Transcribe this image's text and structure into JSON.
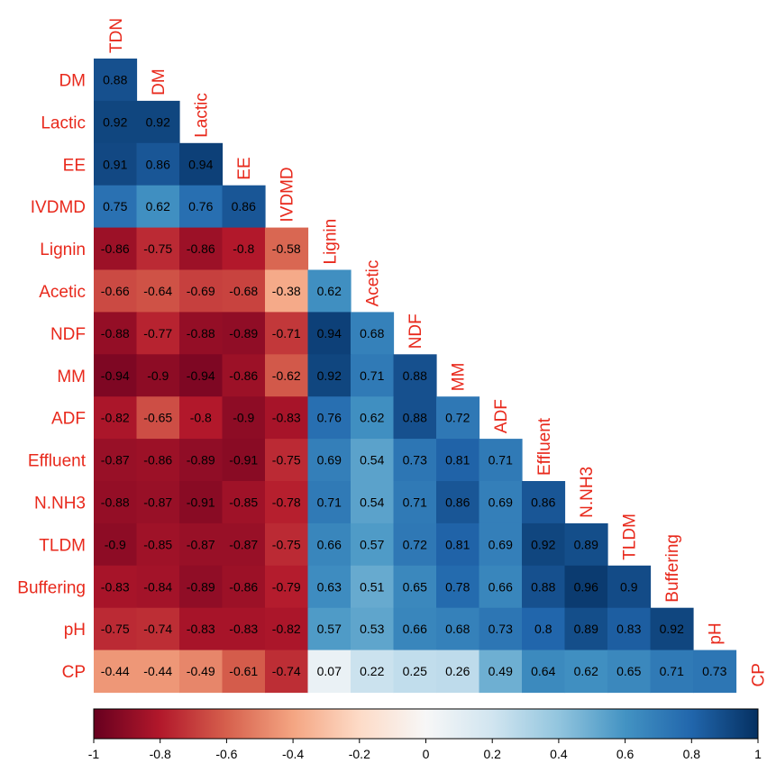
{
  "chart_data": {
    "type": "heatmap",
    "subtype": "lower-triangular correlation matrix",
    "variables": [
      "TDN",
      "DM",
      "Lactic",
      "EE",
      "IVDMD",
      "Lignin",
      "Acetic",
      "NDF",
      "MM",
      "ADF",
      "Effluent",
      "N.NH3",
      "TLDM",
      "Buffering",
      "pH",
      "CP"
    ],
    "matrix": [
      [
        "0.88"
      ],
      [
        "0.92",
        "0.92"
      ],
      [
        "0.91",
        "0.86",
        "0.94"
      ],
      [
        "0.75",
        "0.62",
        "0.76",
        "0.86"
      ],
      [
        "-0.86",
        "-0.75",
        "-0.86",
        "-0.8",
        "-0.58"
      ],
      [
        "-0.66",
        "-0.64",
        "-0.69",
        "-0.68",
        "-0.38",
        "0.62"
      ],
      [
        "-0.88",
        "-0.77",
        "-0.88",
        "-0.89",
        "-0.71",
        "0.94",
        "0.68"
      ],
      [
        "-0.94",
        "-0.9",
        "-0.94",
        "-0.86",
        "-0.62",
        "0.92",
        "0.71",
        "0.88"
      ],
      [
        "-0.82",
        "-0.65",
        "-0.8",
        "-0.9",
        "-0.83",
        "0.76",
        "0.62",
        "0.88",
        "0.72"
      ],
      [
        "-0.87",
        "-0.86",
        "-0.89",
        "-0.91",
        "-0.75",
        "0.69",
        "0.54",
        "0.73",
        "0.81",
        "0.71"
      ],
      [
        "-0.88",
        "-0.87",
        "-0.91",
        "-0.85",
        "-0.78",
        "0.71",
        "0.54",
        "0.71",
        "0.86",
        "0.69",
        "0.86"
      ],
      [
        "-0.9",
        "-0.85",
        "-0.87",
        "-0.87",
        "-0.75",
        "0.66",
        "0.57",
        "0.72",
        "0.81",
        "0.69",
        "0.92",
        "0.89"
      ],
      [
        "-0.83",
        "-0.84",
        "-0.89",
        "-0.86",
        "-0.79",
        "0.63",
        "0.51",
        "0.65",
        "0.78",
        "0.66",
        "0.88",
        "0.96",
        "0.9"
      ],
      [
        "-0.75",
        "-0.74",
        "-0.83",
        "-0.83",
        "-0.82",
        "0.57",
        "0.53",
        "0.66",
        "0.68",
        "0.73",
        "0.8",
        "0.89",
        "0.83",
        "0.92"
      ],
      [
        "-0.44",
        "-0.44",
        "-0.49",
        "-0.61",
        "-0.74",
        "0.07",
        "0.22",
        "0.25",
        "0.26",
        "0.49",
        "0.64",
        "0.62",
        "0.65",
        "0.71",
        "0.73"
      ]
    ],
    "colorbar": {
      "range": [
        -1,
        1
      ],
      "ticks": [
        "-1",
        "-0.8",
        "-0.6",
        "-0.4",
        "-0.2",
        "0",
        "0.2",
        "0.4",
        "0.6",
        "0.8",
        "1"
      ],
      "placement": "bottom"
    },
    "palette": {
      "neg_full": "#67001f",
      "neg_mid": "#b2182b",
      "neg_light": "#d6604d",
      "neg_pale": "#f4a582",
      "neg_faint": "#fddbc7",
      "zero": "#f7f7f7",
      "pos_faint": "#d1e5f0",
      "pos_pale": "#92c5de",
      "pos_light": "#4393c3",
      "pos_mid": "#2166ac",
      "pos_full": "#053061"
    },
    "label_color": "#e8291c"
  }
}
